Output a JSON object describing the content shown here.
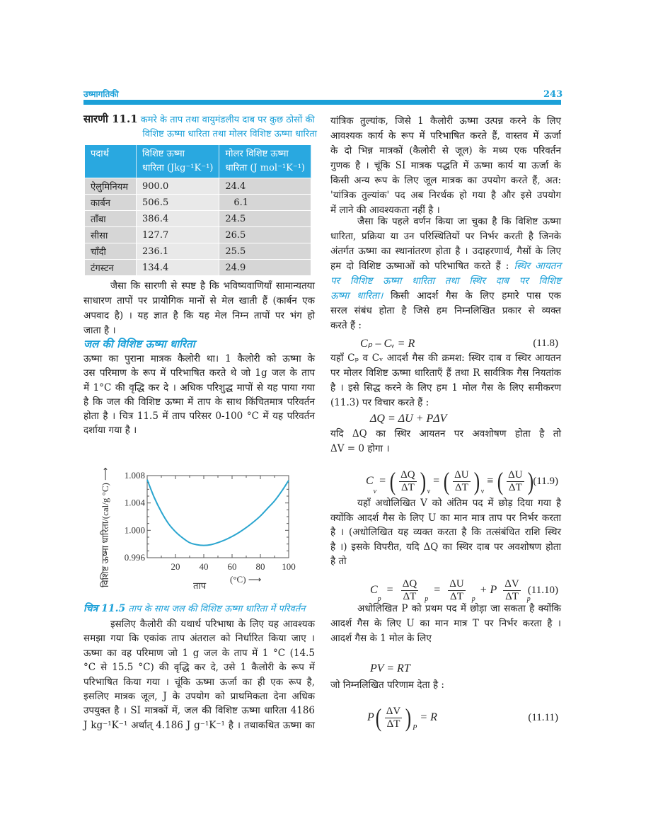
{
  "header": {
    "chapter": "उष्मागतिकी",
    "page_number": "243",
    "accent_color": "#1ba0d8"
  },
  "table": {
    "label": "सारणी 11.1",
    "caption_line1": "कमरे के ताप तथा वायुमंडलीय दाब पर कुछ ठोसों की",
    "caption_line2": "विशिष्ट ऊष्मा धारिता तथा मोलर विशिष्ट ऊष्मा धारिता",
    "headers": [
      {
        "l1": "पदार्थ",
        "l2": ""
      },
      {
        "l1": "विशिष्ट ऊष्मा",
        "l2": "धारिता (Jkg⁻¹K⁻¹)"
      },
      {
        "l1": "मोलर विशिष्ट ऊष्मा",
        "l2": "धारिता (J mol⁻¹K⁻¹)"
      }
    ],
    "rows": [
      [
        "ऐलुमिनियम",
        "900.0",
        "24.4"
      ],
      [
        "कार्बन",
        "506.5",
        "6.1"
      ],
      [
        "ताँबा",
        "386.4",
        "24.5"
      ],
      [
        "सीसा",
        "127.7",
        "26.5"
      ],
      [
        "चाँदी",
        "236.1",
        "25.5"
      ],
      [
        "टंगस्टन",
        "134.4",
        "24.9"
      ]
    ]
  },
  "left": {
    "para1": [
      "जैसा कि सारणी से स्पष्ट है कि भविष्यवाणियाँ सामान्यतया",
      "साधारण तापों पर प्रायोगिक मानों से मेल खाती हैं (कार्बन एक",
      "अपवाद है) । यह ज्ञात है कि यह मेल निम्न तापों पर भंग हो",
      "जाता है ।"
    ],
    "heading": "जल की विशिष्ट ऊष्मा धारिता",
    "para2": [
      "ऊष्मा का पुराना मात्रक कैलोरी था। 1 कैलोरी को ऊष्मा के",
      "उस परिमाण के रूप में परिभाषित करते थे जो 1g जल के ताप",
      "में 1°C की वृद्धि कर दे । अधिक परिशुद्ध मापों से यह पाया गया",
      "है कि जल की विशिष्ट ऊष्मा में ताप के साथ किंचितमात्र परिवर्तन",
      "होता है । चित्र 11.5 में ताप परिसर 0-100 °C में यह परिवर्तन",
      "दर्शाया गया है ।"
    ],
    "figure_label": "चित्र 11.5",
    "figure_caption": "ताप के साथ जल की विशिष्ट ऊष्मा धारिता में परिवर्तन",
    "para3": [
      "इसलिए कैलोरी की यथार्थ परिभाषा के लिए यह आवश्यक",
      "समझा गया कि एकांक ताप अंतराल को निर्धारित किया जाए ।",
      "ऊष्मा का वह परिमाण जो 1 g जल के ताप में 1 °C (14.5",
      "°C से 15.5 °C) की वृद्धि कर दे, उसे 1 कैलोरी के रूप में",
      "परिभाषित किया गया । चूंकि ऊष्मा ऊर्जा का ही एक रूप है,",
      "इसलिए मात्रक जूल, J के उपयोग को प्राथमिकता देना अधिक",
      "उपयुक्त है । SI मात्रकों में, जल की विशिष्ट ऊष्मा धारिता 4186",
      "J kg⁻¹K⁻¹ अर्थात् 4.186 J g⁻¹K⁻¹ है । तथाकथित ऊष्मा का"
    ]
  },
  "chart_data": {
    "type": "line",
    "xlabel": "ताप",
    "xunit": "(°C) ⟶",
    "ylabel": "विशिष्ट ऊष्मा धारिता/(cal/g °C) ⟶",
    "xlim": [
      0,
      100
    ],
    "ylim": [
      0.996,
      1.008
    ],
    "xticks": [
      20,
      40,
      60,
      80,
      100
    ],
    "yticks": [
      "1.008",
      "1.004",
      "1.000",
      "0.996"
    ],
    "line_color": "#2aa5cf",
    "x": [
      0,
      5,
      10,
      15,
      20,
      25,
      30,
      35,
      40,
      45,
      50,
      55,
      60,
      65,
      70,
      75,
      80,
      85,
      90,
      95,
      100
    ],
    "y": [
      1.0074,
      1.0048,
      1.0027,
      1.001,
      0.9998,
      0.9989,
      0.9982,
      0.9979,
      0.9978,
      0.9979,
      0.9982,
      0.9986,
      0.9991,
      0.9997,
      1.0004,
      1.0012,
      1.0021,
      1.0032,
      1.0043,
      1.0057,
      1.0073
    ]
  },
  "right": {
    "paraA": [
      "यांत्रिक तुल्यांक, जिसे 1 कैलोरी ऊष्मा उत्पन्न करने के लिए",
      "आवश्यक कार्य के रूप में परिभाषित करते हैं, वास्तव में ऊर्जा",
      "के दो भिन्न मात्रकों (कैलोरी से जूल) के मध्य एक परिवर्तन",
      "गुणक है । चूंकि SI मात्रक पद्धति में ऊष्मा कार्य या ऊर्जा के",
      "किसी अन्य रूप के लिए जूल मात्रक का उपयोग करते हैं, अत:",
      "'यांत्रिक तुल्यांक' पद अब निरर्थक हो गया है और इसे उपयोग",
      "में लाने की आवश्यकता नहीं है ।"
    ],
    "paraB": [
      "जैसा कि पहले वर्णन किया जा चुका है कि विशिष्ट ऊष्मा",
      "धारिता, प्रक्रिया या उन परिस्थितियों पर निर्भर करती है जिनके",
      "अंतर्गत ऊष्मा का स्थानांतरण होता है । उदाहरणार्थ, गैसों के लिए",
      [
        {
          "t": "हम दो विशिष्ट ऊष्माओं को परिभाषित करते हैं : ",
          "em": false
        },
        {
          "t": "स्थिर आयतन",
          "em": true
        }
      ],
      [
        {
          "t": "पर विशिष्ट ऊष्मा धारिता तथा स्थिर दाब पर विशिष्ट",
          "em": true
        }
      ],
      [
        {
          "t": "ऊष्मा धारिता।",
          "em": true
        },
        {
          "t": " किसी आदर्श गैस के लिए हमारे पास एक",
          "em": false
        }
      ],
      "सरल संबंध होता है जिसे हम निम्नलिखित प्रकार से व्यक्त",
      "करते हैं :"
    ],
    "eq_11_8": {
      "text": "Cₚ – Cᵥ = R",
      "number": "(11.8)"
    },
    "paraC": [
      "यहाँ Cₚ व Cᵥ आदर्श गैस की क्रमश: स्थिर दाब व स्थिर आयतन",
      "पर मोलर विशिष्ट ऊष्मा धारिताएँ हैं तथा R सार्वत्रिक गैस नियतांक",
      "है । इसे सिद्ध करने के लिए हम 1 मोल गैस के लिए समीकरण",
      "(11.3) पर विचार करते हैं :"
    ],
    "eq_dq": "ΔQ = ΔU + PΔV",
    "paraC2": [
      "यदि ΔQ का स्थिर आयतन पर अवशोषण होता है तो",
      "ΔV = 0 होगा ।"
    ],
    "eq_11_9": {
      "lhs": "C",
      "lhs_sub": "v",
      "n1": "ΔQ",
      "d1": "ΔT",
      "s1": "v",
      "n2": "ΔU",
      "d2": "ΔT",
      "s2": "v",
      "n3": "ΔU",
      "d3": "ΔT",
      "number": "(11.9)"
    },
    "paraD": [
      "यहाँ अधोलिखित V को अंतिम पद में छोड़ दिया गया है",
      "क्योंकि आदर्श गैस के लिए U का मान मात्र ताप पर निर्भर करता",
      "है । (अधोलिखित यह व्यक्त करता है कि तत्संबंधित राशि स्थिर",
      "है ।) इसके विपरीत, यदि ΔQ का स्थिर दाब पर अवशोषण होता",
      "है तो"
    ],
    "eq_11_10": {
      "lhs": "C",
      "lhs_sub": "p",
      "n1": "ΔQ",
      "d1": "ΔT",
      "s1": "p",
      "n2": "ΔU",
      "d2": "ΔT",
      "s2": "p",
      "p": "+ P",
      "n3": "ΔV",
      "d3": "ΔT",
      "s3": "p",
      "number": "(11.10)"
    },
    "paraE": [
      "अधोलिखित P को प्रथम पद में छोड़ा जा सकता है क्योंकि",
      "आदर्श गैस के लिए U का मान मात्र T पर निर्भर करता है ।",
      "आदर्श गैस के 1 मोल के लिए"
    ],
    "eq_pv": "PV = RT",
    "paraF": [
      "जो निम्नलिखित परिणाम देता है :"
    ],
    "eq_11_11": {
      "lhs": "P",
      "n": "ΔV",
      "d": "ΔT",
      "sub": "P",
      "rhs": "= R",
      "number": "(11.11)"
    }
  }
}
